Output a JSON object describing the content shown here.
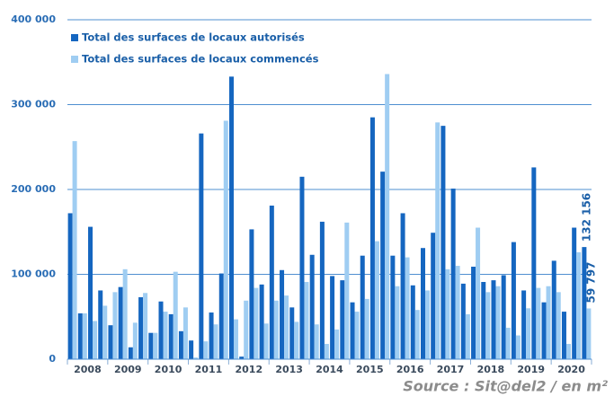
{
  "chart_data": {
    "type": "bar",
    "years": [
      "2008",
      "2009",
      "2010",
      "2011",
      "2012",
      "2013",
      "2014",
      "2015",
      "2016",
      "2017",
      "2018",
      "2019",
      "2020"
    ],
    "series": [
      {
        "name": "Total des surfaces de locaux autorisés",
        "color": "#1566c0",
        "values": [
          172000,
          54000,
          156000,
          81000,
          40000,
          85000,
          14000,
          73000,
          31000,
          68000,
          53000,
          33000,
          22000,
          266000,
          55000,
          101000,
          333000,
          3000,
          153000,
          88000,
          181000,
          105000,
          61000,
          215000,
          123000,
          162000,
          98000,
          93000,
          67000,
          122000,
          285000,
          221000,
          122000,
          172000,
          87000,
          131000,
          149000,
          275000,
          201000,
          89000,
          109000,
          91000,
          93000,
          99000,
          138000,
          81000,
          226000,
          67000,
          116000,
          56000,
          155000,
          132156
        ],
        "value_labels": [
          null,
          null,
          null,
          null,
          null,
          null,
          null,
          null,
          null,
          null,
          null,
          null,
          null,
          null,
          null,
          null,
          null,
          null,
          null,
          null,
          null,
          null,
          null,
          null,
          null,
          null,
          null,
          null,
          null,
          null,
          null,
          null,
          null,
          null,
          null,
          null,
          null,
          null,
          null,
          null,
          null,
          null,
          null,
          null,
          null,
          null,
          null,
          null,
          null,
          null,
          null,
          "132 156"
        ]
      },
      {
        "name": "Total des surfaces de locaux commencés",
        "color": "#9fcdf2",
        "values": [
          257000,
          54000,
          45000,
          63000,
          79000,
          106000,
          43000,
          78000,
          31000,
          56000,
          103000,
          61000,
          2000,
          21000,
          41000,
          281000,
          47000,
          69000,
          84000,
          42000,
          69000,
          75000,
          44000,
          91000,
          41000,
          18000,
          35000,
          161000,
          56000,
          71000,
          139000,
          336000,
          86000,
          120000,
          58000,
          81000,
          279000,
          106000,
          110000,
          53000,
          155000,
          79000,
          86000,
          37000,
          28000,
          60000,
          84000,
          86000,
          79000,
          18000,
          126000,
          59797
        ],
        "value_labels": [
          null,
          null,
          null,
          null,
          null,
          null,
          null,
          null,
          null,
          null,
          null,
          null,
          null,
          null,
          null,
          null,
          null,
          null,
          null,
          null,
          null,
          null,
          null,
          null,
          null,
          null,
          null,
          null,
          null,
          null,
          null,
          null,
          null,
          null,
          null,
          null,
          null,
          null,
          null,
          null,
          null,
          null,
          null,
          null,
          null,
          null,
          null,
          null,
          null,
          null,
          null,
          "59 797"
        ]
      }
    ],
    "ylim": [
      0,
      400000
    ],
    "yticks": [
      {
        "value": 0,
        "label": "0"
      },
      {
        "value": 100000,
        "label": "100 000"
      },
      {
        "value": 200000,
        "label": "200 000"
      },
      {
        "value": 300000,
        "label": "300 000"
      },
      {
        "value": 400000,
        "label": "400 000"
      }
    ],
    "grid": true,
    "source": "Source : Sit@del2 / en m²"
  }
}
